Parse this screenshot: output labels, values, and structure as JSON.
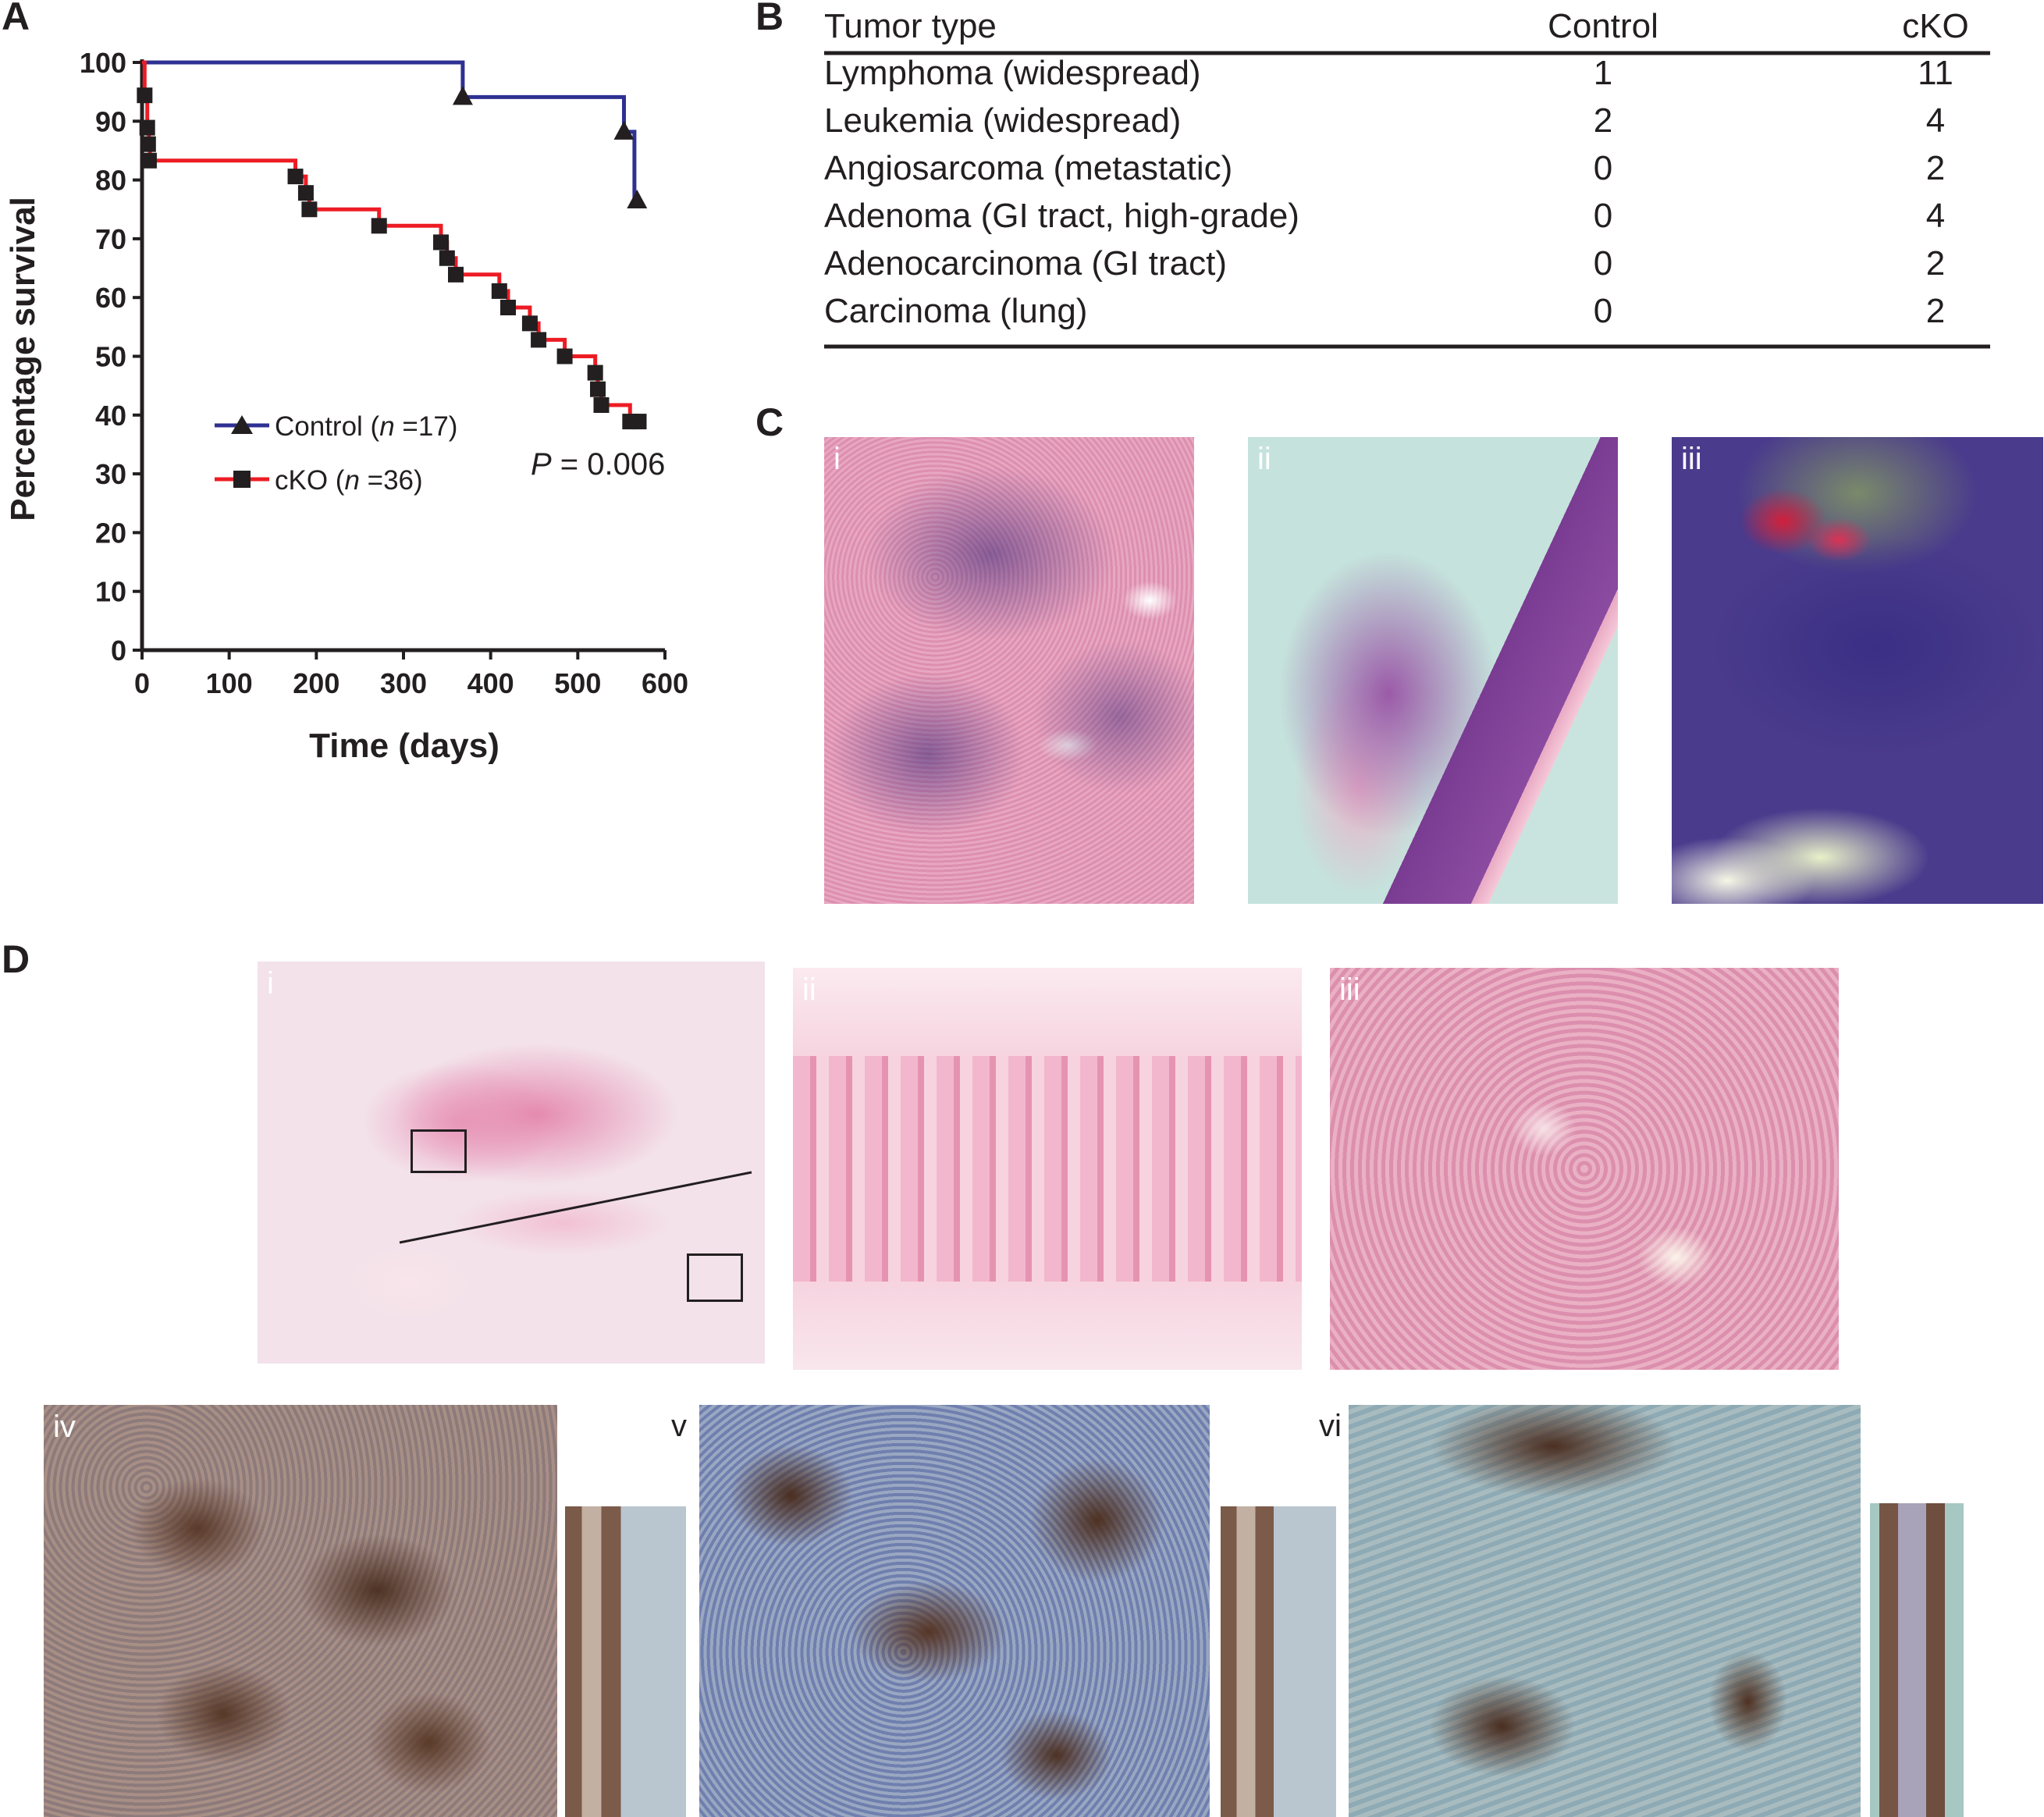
{
  "panels": {
    "A": "A",
    "B": "B",
    "C": "C",
    "D": "D"
  },
  "chart_data": {
    "type": "line",
    "subtype": "kaplan-meier-step",
    "xlabel": "Time (days)",
    "ylabel": "Percentage survival",
    "xlim": [
      0,
      600
    ],
    "ylim": [
      0,
      100
    ],
    "xticks": [
      "0",
      "100",
      "200",
      "300",
      "400",
      "500",
      "600"
    ],
    "yticks": [
      "0",
      "10",
      "20",
      "30",
      "40",
      "50",
      "60",
      "70",
      "80",
      "90",
      "100"
    ],
    "legend_position": "center-left",
    "grid": false,
    "annotation": "P = 0.006",
    "annotation_parts": {
      "p": "P",
      "rest": " = 0.006"
    },
    "series": [
      {
        "name": "Control (n =17)",
        "name_parts": {
          "pre": "Control (",
          "n": "n",
          "post": " =17)"
        },
        "color": "#2e3192",
        "marker": "triangle",
        "steps": [
          [
            0,
            100
          ],
          [
            368,
            100
          ],
          [
            368,
            94.1
          ],
          [
            553,
            94.1
          ],
          [
            553,
            88.2
          ],
          [
            565,
            88.2
          ],
          [
            565,
            76.5
          ],
          [
            570,
            76.5
          ]
        ],
        "markers": [
          [
            368,
            94.1
          ],
          [
            553,
            88.2
          ],
          [
            568,
            76.5
          ]
        ]
      },
      {
        "name": "cKO (n =36)",
        "name_parts": {
          "pre": "cKO (",
          "n": "n",
          "post": " =36)"
        },
        "color": "#ed1c24",
        "marker": "square",
        "steps": [
          [
            0,
            100
          ],
          [
            3,
            100
          ],
          [
            3,
            94.4
          ],
          [
            6,
            94.4
          ],
          [
            6,
            88.9
          ],
          [
            8,
            88.9
          ],
          [
            8,
            86.1
          ],
          [
            9,
            86.1
          ],
          [
            9,
            83.3
          ],
          [
            176,
            83.3
          ],
          [
            176,
            80.6
          ],
          [
            188,
            80.6
          ],
          [
            188,
            77.8
          ],
          [
            192,
            77.8
          ],
          [
            192,
            75.0
          ],
          [
            272,
            75.0
          ],
          [
            272,
            72.2
          ],
          [
            343,
            72.2
          ],
          [
            343,
            69.4
          ],
          [
            350,
            69.4
          ],
          [
            350,
            66.7
          ],
          [
            360,
            66.7
          ],
          [
            360,
            63.9
          ],
          [
            410,
            63.9
          ],
          [
            410,
            61.1
          ],
          [
            420,
            61.1
          ],
          [
            420,
            58.3
          ],
          [
            445,
            58.3
          ],
          [
            445,
            55.6
          ],
          [
            455,
            55.6
          ],
          [
            455,
            52.8
          ],
          [
            485,
            52.8
          ],
          [
            485,
            50.0
          ],
          [
            520,
            50.0
          ],
          [
            520,
            47.2
          ],
          [
            523,
            47.2
          ],
          [
            523,
            44.4
          ],
          [
            527,
            44.4
          ],
          [
            527,
            41.7
          ],
          [
            560,
            41.7
          ],
          [
            560,
            38.9
          ],
          [
            575,
            38.9
          ]
        ],
        "markers": [
          [
            3,
            94.4
          ],
          [
            6,
            88.9
          ],
          [
            7,
            86.1
          ],
          [
            8,
            83.3
          ],
          [
            176,
            80.6
          ],
          [
            188,
            77.8
          ],
          [
            192,
            75.0
          ],
          [
            272,
            72.2
          ],
          [
            343,
            69.4
          ],
          [
            350,
            66.7
          ],
          [
            360,
            63.9
          ],
          [
            410,
            61.1
          ],
          [
            420,
            58.3
          ],
          [
            445,
            55.6
          ],
          [
            455,
            52.8
          ],
          [
            485,
            50.0
          ],
          [
            520,
            47.2
          ],
          [
            523,
            44.4
          ],
          [
            527,
            41.7
          ],
          [
            560,
            38.9
          ],
          [
            570,
            38.9
          ]
        ]
      }
    ]
  },
  "table": {
    "headers": [
      "Tumor type",
      "Control",
      "cKO"
    ],
    "rows": [
      [
        "Lymphoma (widespread)",
        "1",
        "11"
      ],
      [
        "Leukemia (widespread)",
        "2",
        "4"
      ],
      [
        "Angiosarcoma (metastatic)",
        "0",
        "2"
      ],
      [
        "Adenoma (GI tract, high-grade)",
        "0",
        "4"
      ],
      [
        "Adenocarcinoma (GI tract)",
        "0",
        "2"
      ],
      [
        "Carcinoma (lung)",
        "0",
        "2"
      ]
    ]
  },
  "images_c": {
    "labels": [
      "i",
      "ii",
      "iii"
    ]
  },
  "images_d": {
    "labels": [
      "i",
      "ii",
      "iii",
      "iv",
      "v",
      "vi"
    ]
  },
  "colors": {
    "text": "#231f20",
    "control": "#2e3192",
    "cko": "#ed1c24"
  }
}
